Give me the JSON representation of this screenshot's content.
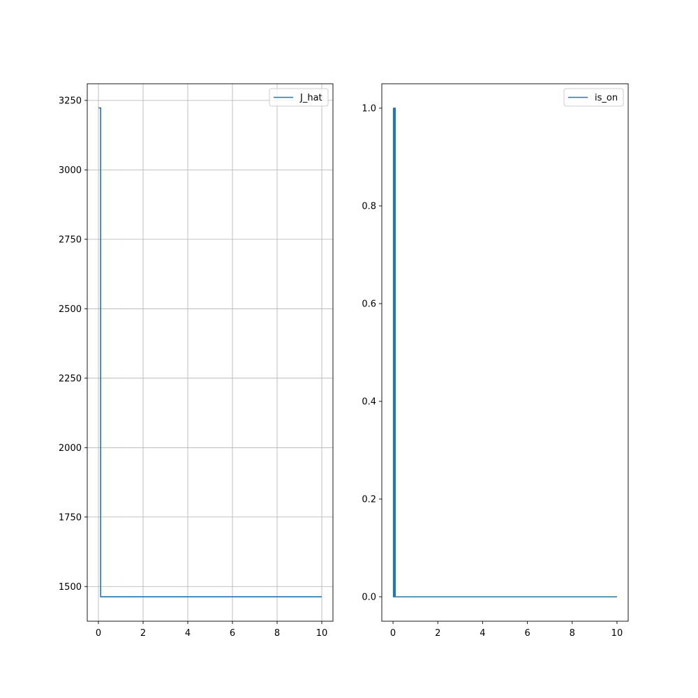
{
  "colors": {
    "series": "#1f77b4",
    "grid": "#b0b0b0",
    "axis": "#000000",
    "legend_border": "#cccccc",
    "background": "#ffffff"
  },
  "chart_data": [
    {
      "type": "line",
      "title": "",
      "xlabel": "",
      "ylabel": "",
      "xlim": [
        -0.5,
        10.5
      ],
      "ylim": [
        1375,
        3310
      ],
      "xticks": [
        0,
        2,
        4,
        6,
        8,
        10
      ],
      "yticks": [
        1500,
        1750,
        2000,
        2250,
        2500,
        2750,
        3000,
        3250
      ],
      "grid": true,
      "legend": "top-right",
      "series": [
        {
          "name": "J_hat",
          "x": [
            0,
            0.1,
            0.1,
            10
          ],
          "y": [
            3223,
            3223,
            1463,
            1463
          ]
        }
      ]
    },
    {
      "type": "line",
      "title": "",
      "xlabel": "",
      "ylabel": "",
      "xlim": [
        -0.5,
        10.5
      ],
      "ylim": [
        -0.05,
        1.05
      ],
      "xticks": [
        0,
        2,
        4,
        6,
        8,
        10
      ],
      "yticks": [
        0.0,
        0.2,
        0.4,
        0.6,
        0.8,
        1.0
      ],
      "grid": false,
      "legend": "top-right",
      "series": [
        {
          "name": "is_on",
          "x": [
            0,
            0.02,
            0.02,
            0.04,
            0.04,
            0.06,
            0.06,
            0.08,
            0.08,
            0.1,
            0.1,
            10
          ],
          "y": [
            1,
            1,
            0,
            0,
            1,
            1,
            0,
            0,
            1,
            1,
            0,
            0
          ]
        }
      ]
    }
  ]
}
